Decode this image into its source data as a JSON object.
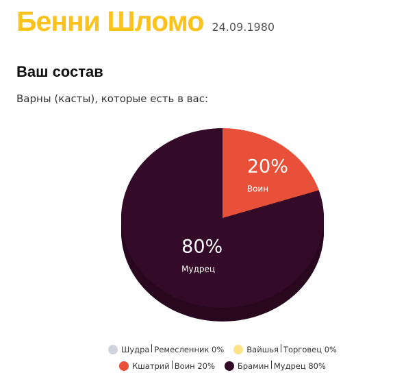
{
  "header": {
    "name": "Бенни Шломо",
    "date": "24.09.1980"
  },
  "section_title": "Ваш состав",
  "intro": "Варны (касты), которые есть в вас:",
  "chart_data": {
    "type": "pie",
    "categories": [
      "Шудра",
      "Вайшья",
      "Кшатрий",
      "Брамин"
    ],
    "roles": [
      "Ремесленник",
      "Торговец",
      "Воин",
      "Мудрец"
    ],
    "values": [
      0,
      0,
      20,
      80
    ],
    "value_labels": [
      "0%",
      "0%",
      "20%",
      "80%"
    ],
    "colors": [
      "#ced3dc",
      "#fde38a",
      "#e8503a",
      "#330a27"
    ]
  }
}
